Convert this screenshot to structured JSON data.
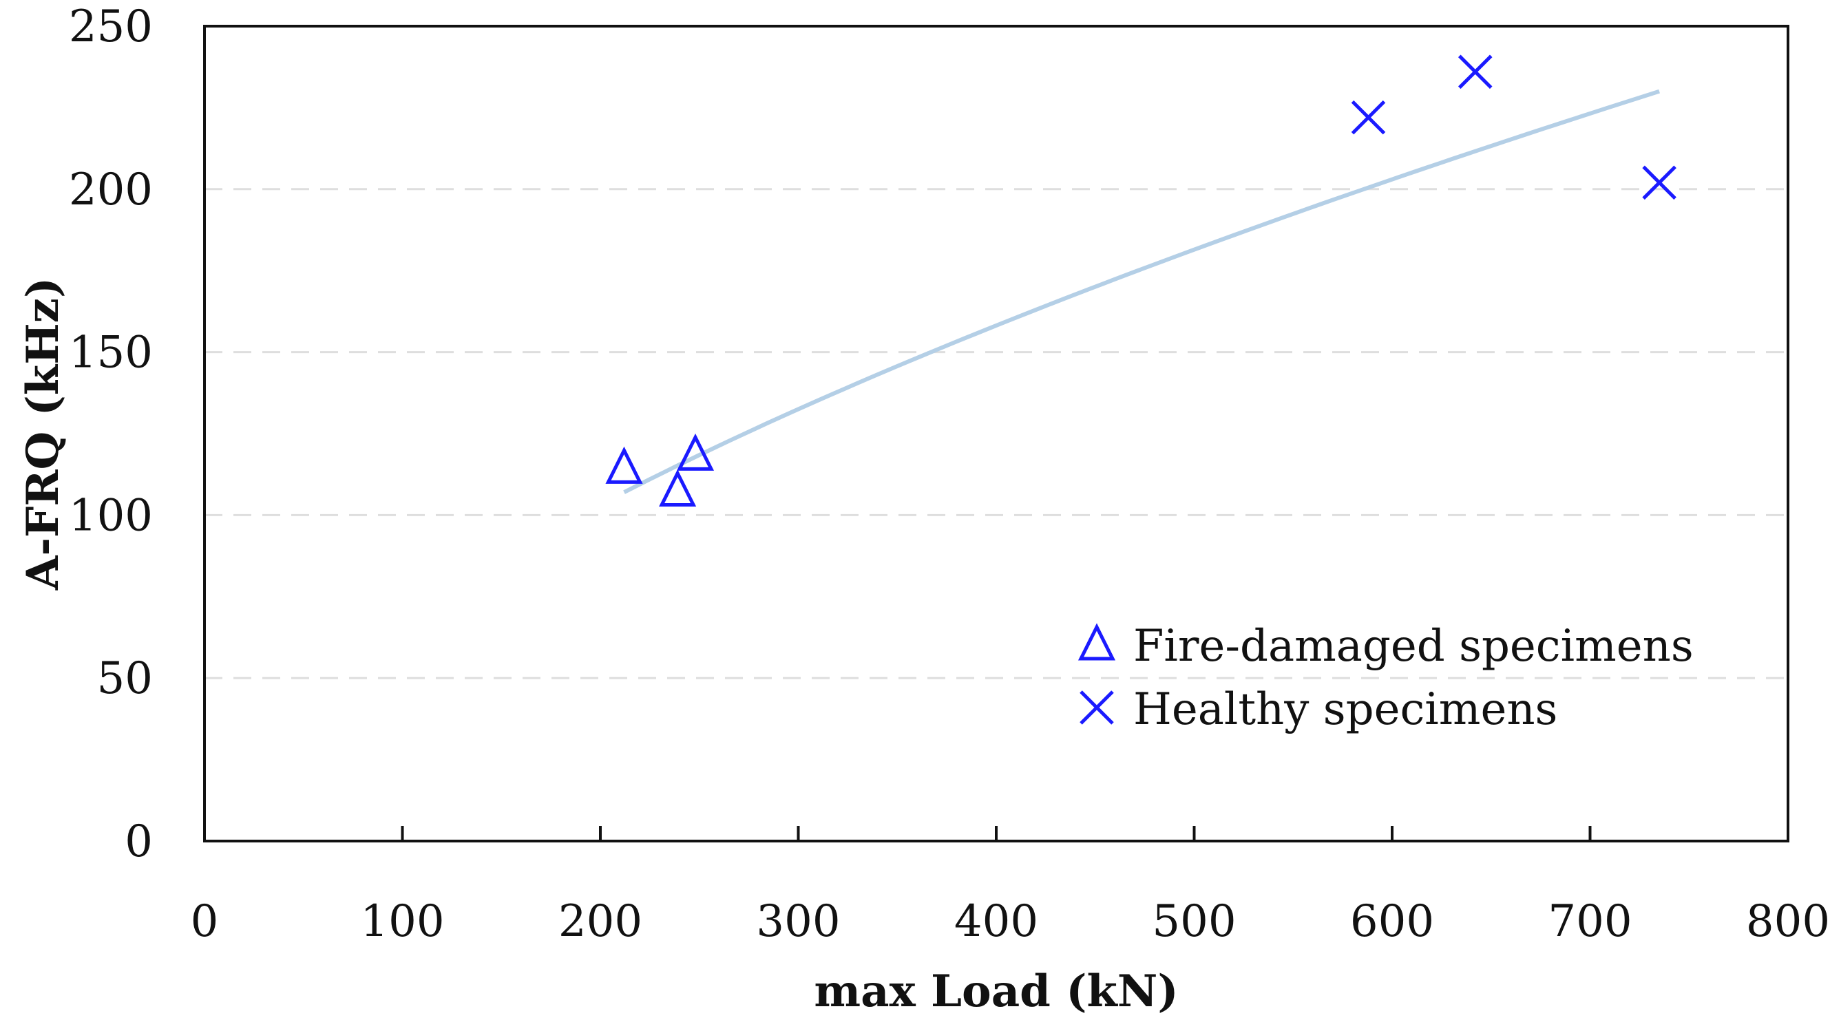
{
  "chart_data": {
    "type": "scatter",
    "title": "",
    "xlabel": "max Load (kN)",
    "ylabel": "A-FRQ (kHz)",
    "xlim": [
      0,
      800
    ],
    "ylim": [
      0,
      250
    ],
    "xticks": [
      0,
      100,
      200,
      300,
      400,
      500,
      600,
      700,
      800
    ],
    "yticks": [
      0,
      50,
      100,
      150,
      200,
      250
    ],
    "grid": "horizontal dashed",
    "legend_position": "bottom-right",
    "series": [
      {
        "name": "Fire-damaged specimens",
        "marker": "triangle",
        "color": "#1a1aff",
        "points": [
          {
            "x": 212,
            "y": 115
          },
          {
            "x": 239,
            "y": 108
          },
          {
            "x": 248,
            "y": 119
          }
        ]
      },
      {
        "name": "Healthy specimens",
        "marker": "x",
        "color": "#1a1aff",
        "points": [
          {
            "x": 588,
            "y": 222
          },
          {
            "x": 642,
            "y": 236
          },
          {
            "x": 735,
            "y": 202
          }
        ]
      }
    ],
    "trendline": {
      "type": "power",
      "color": "#b4cfe6",
      "x_start": 212,
      "x_end": 735,
      "y_start": 107,
      "y_end": 230
    }
  }
}
